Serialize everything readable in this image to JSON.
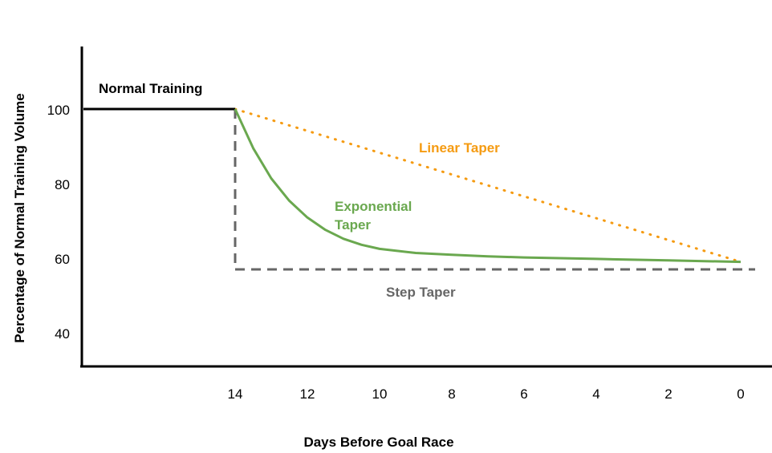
{
  "chart_data": {
    "type": "line",
    "title": "",
    "xlabel": "Days Before Goal Race",
    "ylabel": "Percentage of Normal Training Volume",
    "x_ticks": [
      "14",
      "12",
      "10",
      "8",
      "6",
      "4",
      "2",
      "0"
    ],
    "y_ticks": [
      "40",
      "60",
      "80",
      "100"
    ],
    "xlim": [
      18.3,
      -0.4
    ],
    "ylim": [
      31,
      117
    ],
    "grid": false,
    "legend": "none",
    "series": [
      {
        "name": "Normal Training",
        "color": "#000000",
        "style": "solid",
        "x": [
          18.2,
          14
        ],
        "y": [
          100,
          100
        ]
      },
      {
        "name": "Linear Taper",
        "color": "#f59b12",
        "style": "dotted",
        "x": [
          14,
          0
        ],
        "y": [
          100,
          59
        ]
      },
      {
        "name": "Exponential Taper",
        "color": "#6aa84f",
        "style": "solid",
        "x": [
          14,
          13.5,
          13,
          12.5,
          12,
          11.5,
          11,
          10.5,
          10,
          9,
          8,
          7,
          6,
          5,
          4,
          3,
          2,
          1,
          0
        ],
        "y": [
          100,
          89.5,
          81.4,
          75.4,
          70.9,
          67.6,
          65.2,
          63.6,
          62.5,
          61.4,
          60.9,
          60.5,
          60.2,
          60.0,
          59.8,
          59.6,
          59.4,
          59.2,
          59.0
        ]
      },
      {
        "name": "Step Taper",
        "color": "#666666",
        "style": "dashed",
        "x": [
          14,
          14,
          -0.4
        ],
        "y": [
          100,
          57,
          57
        ]
      }
    ],
    "annotations": [
      {
        "text": "Normal Training",
        "color": "#000000",
        "lines": [
          "Normal Training"
        ]
      },
      {
        "text": "Linear Taper",
        "color": "#f59b12",
        "lines": [
          "Linear Taper"
        ]
      },
      {
        "text": "Exponential Taper",
        "color": "#6aa84f",
        "lines": [
          "Exponential",
          "Taper"
        ]
      },
      {
        "text": "Step Taper",
        "color": "#666666",
        "lines": [
          "Step Taper"
        ]
      }
    ]
  }
}
